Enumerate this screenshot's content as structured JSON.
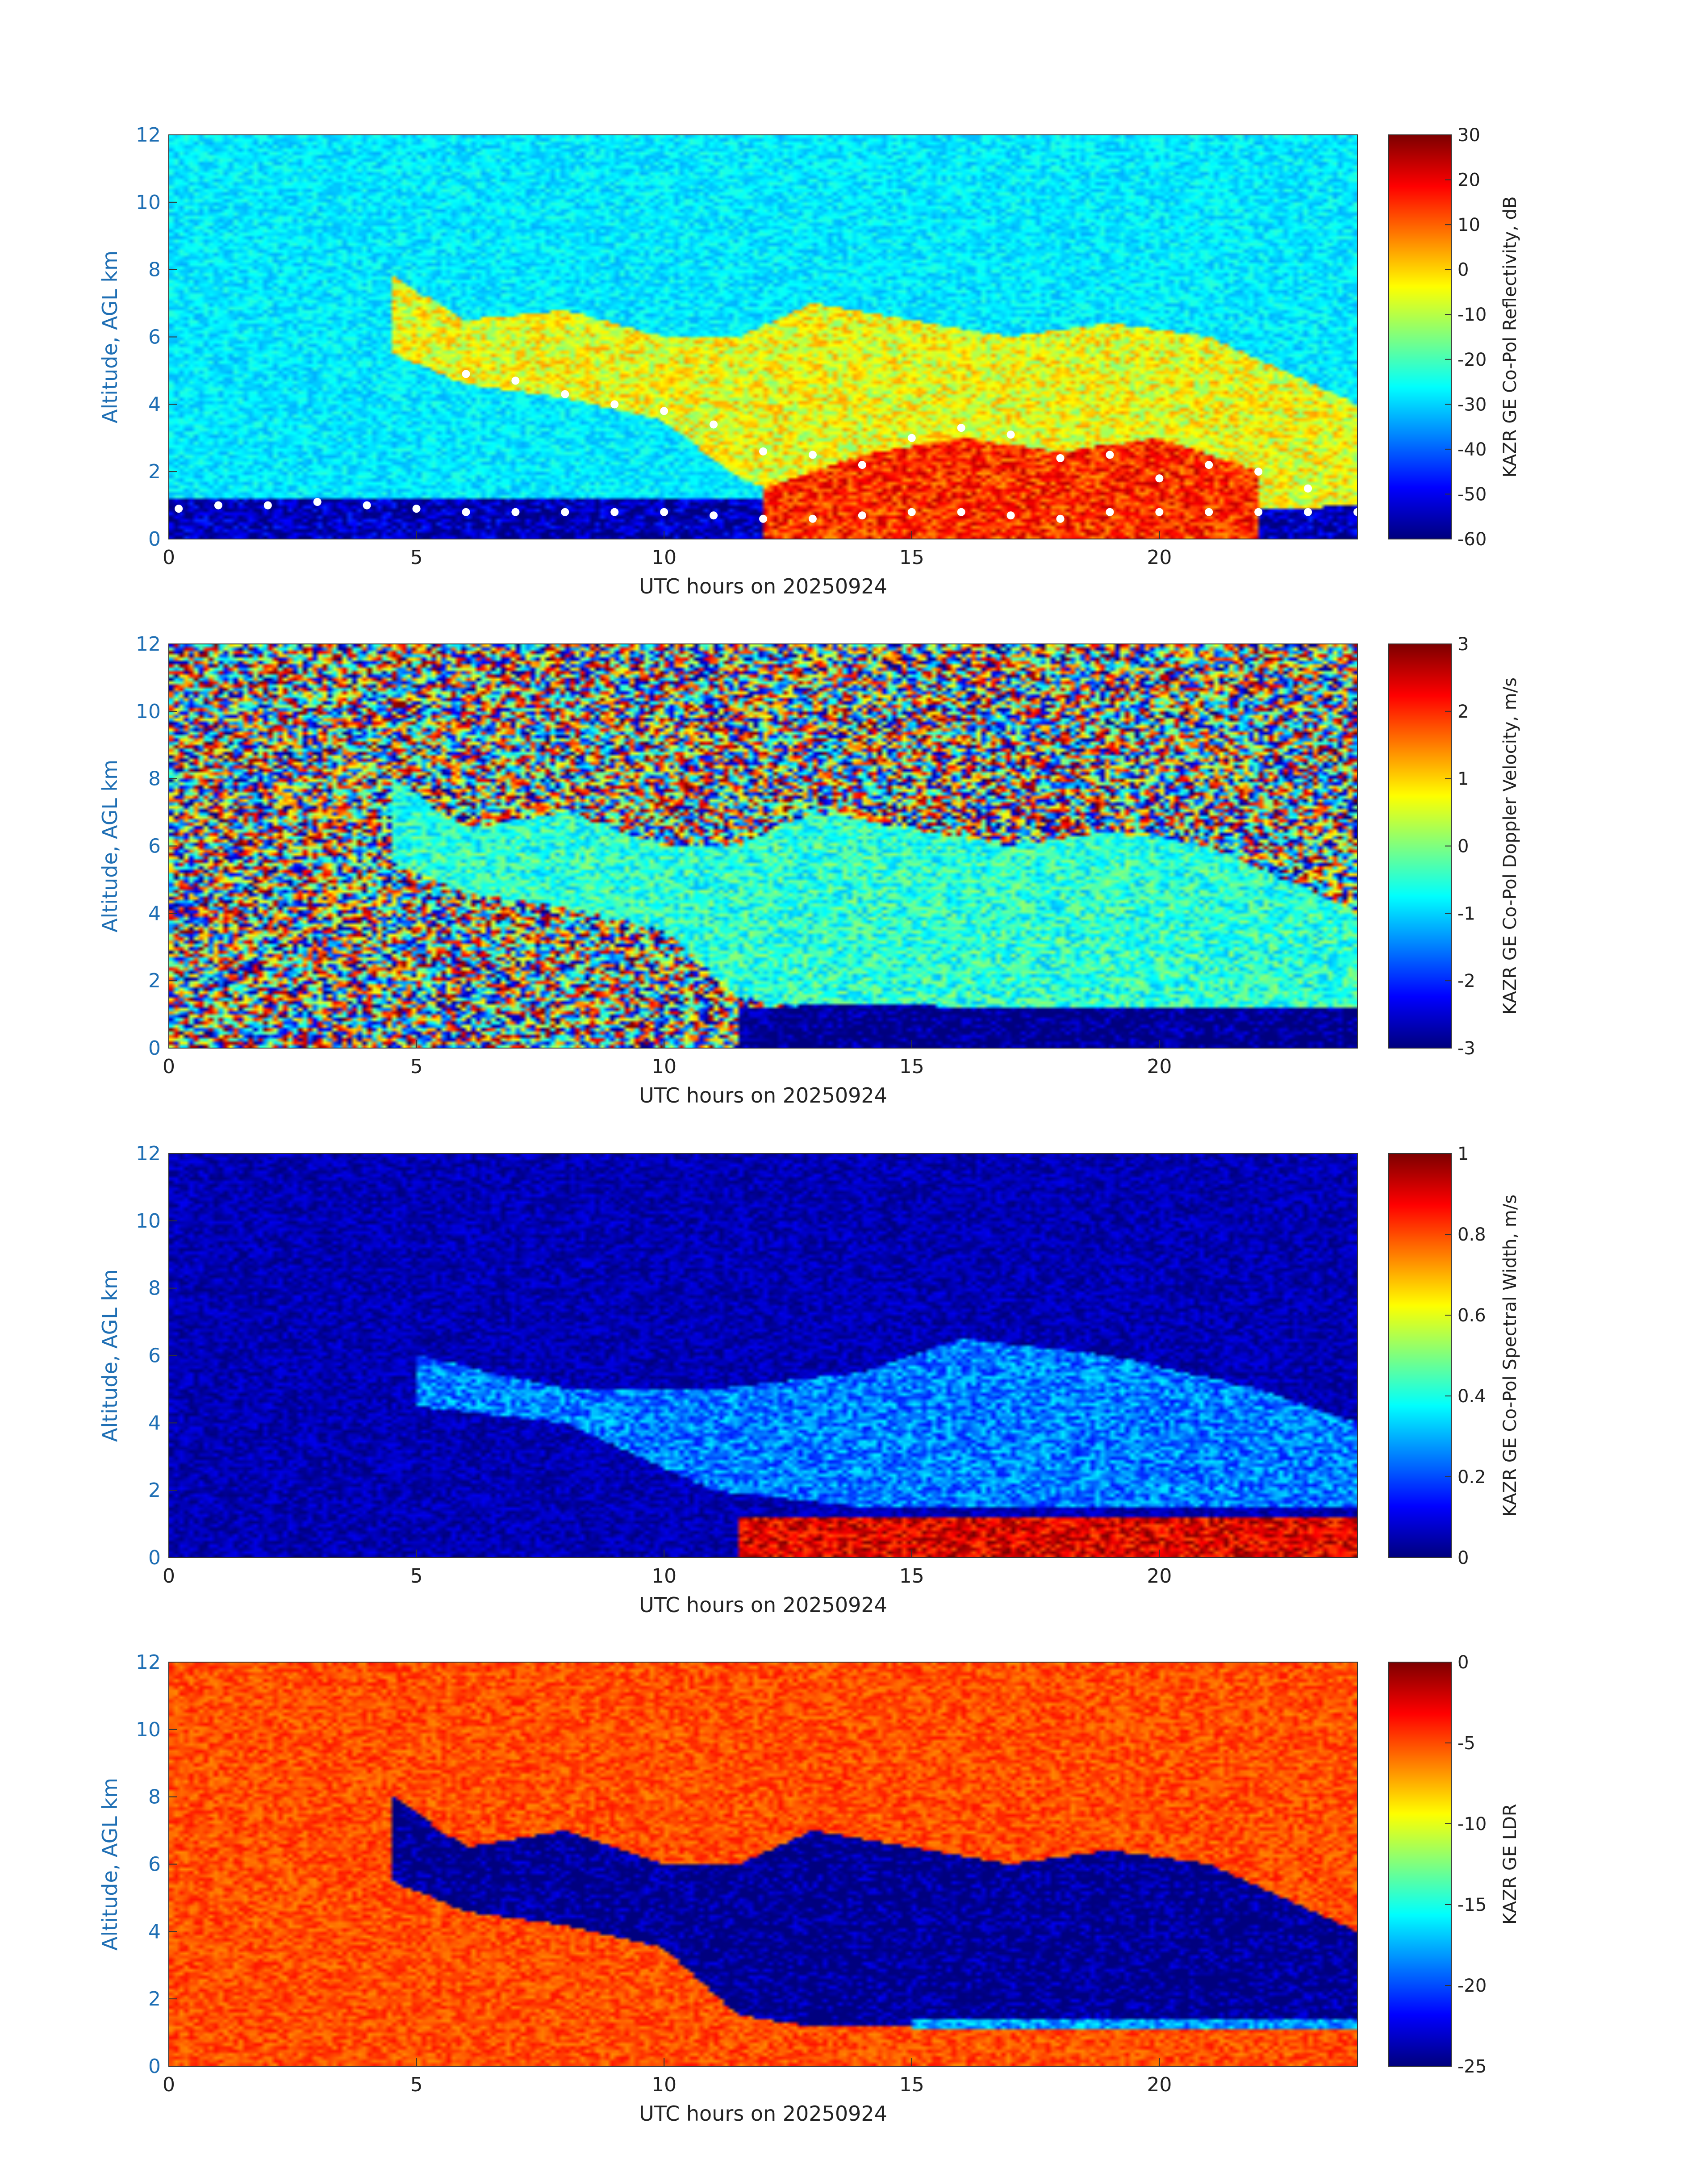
{
  "colors": {
    "ylabel": "#1f6fb4",
    "ytick": "#1f6fb4",
    "xtick": "#222222",
    "jet_ramp": [
      "#00007f",
      "#0000ff",
      "#007fff",
      "#00ffff",
      "#7fff7f",
      "#ffff00",
      "#ff7f00",
      "#ff0000",
      "#7f0000"
    ]
  },
  "chart_data": [
    {
      "type": "heatmap",
      "title": "",
      "xlabel": "UTC hours on 20250924",
      "ylabel": "Altitude, AGL km",
      "xlim": [
        0,
        24
      ],
      "ylim": [
        0,
        12
      ],
      "xticks": [
        0,
        5,
        10,
        15,
        20
      ],
      "yticks": [
        0,
        2,
        4,
        6,
        8,
        10,
        12
      ],
      "colormap": "jet",
      "background_value": -28,
      "colorbar": {
        "label": "KAZR GE Co-Pol Reflectivity, dB",
        "range": [
          -60,
          30
        ],
        "ticks": [
          30,
          20,
          10,
          0,
          -10,
          -20,
          -30,
          -40,
          -50,
          -60
        ]
      },
      "features": [
        {
          "region": "near-surface noise",
          "x": [
            0,
            24
          ],
          "y_bottom": [
            0,
            0
          ],
          "y_top": [
            1.2,
            1.2
          ],
          "value": -55
        },
        {
          "region": "cloud layer",
          "x": [
            4.5,
            6,
            8,
            10,
            11.5,
            13,
            15,
            17,
            19,
            21,
            24
          ],
          "y_bottom": [
            5.5,
            4.6,
            4.2,
            3.5,
            1.8,
            1.0,
            0.8,
            0.8,
            0.8,
            0.8,
            1.0
          ],
          "y_top": [
            7.8,
            6.5,
            6.8,
            6.0,
            6.0,
            7.0,
            6.5,
            6.0,
            6.4,
            6.0,
            4.0
          ],
          "value": -5
        },
        {
          "region": "precipitation",
          "x": [
            12,
            14,
            16,
            18,
            20,
            22
          ],
          "y_bottom": [
            0,
            0,
            0,
            0,
            0,
            0
          ],
          "y_top": [
            1.5,
            2.5,
            3.0,
            2.6,
            3.0,
            2.0
          ],
          "value": 15
        }
      ],
      "overlay_points": {
        "color": "white",
        "x": [
          0.2,
          1.0,
          2.0,
          3.0,
          4.0,
          5.0,
          6.0,
          7.0,
          8.0,
          9.0,
          10.0,
          11.0,
          12.0,
          13.0,
          14.0,
          15.0,
          16.0,
          17.0,
          18.0,
          19.0,
          20.0,
          21.0,
          22.0,
          23.0,
          24.0,
          6.0,
          7.0,
          8.0,
          9.0,
          10.0,
          11.0,
          12.0,
          13.0,
          14.0,
          15.0,
          16.0,
          17.0,
          18.0,
          19.0,
          20.0,
          21.0,
          22.0,
          23.0
        ],
        "y": [
          0.9,
          1.0,
          1.0,
          1.1,
          1.0,
          0.9,
          0.8,
          0.8,
          0.8,
          0.8,
          0.8,
          0.7,
          0.6,
          0.6,
          0.7,
          0.8,
          0.8,
          0.7,
          0.6,
          0.8,
          0.8,
          0.8,
          0.8,
          0.8,
          0.8,
          4.9,
          4.7,
          4.3,
          4.0,
          3.8,
          3.4,
          2.6,
          2.5,
          2.2,
          3.0,
          3.3,
          3.1,
          2.4,
          2.5,
          1.8,
          2.2,
          2.0,
          1.5
        ]
      }
    },
    {
      "type": "heatmap",
      "title": "",
      "xlabel": "UTC hours on 20250924",
      "ylabel": "Altitude, AGL km",
      "xlim": [
        0,
        24
      ],
      "ylim": [
        0,
        12
      ],
      "xticks": [
        0,
        5,
        10,
        15,
        20
      ],
      "yticks": [
        0,
        2,
        4,
        6,
        8,
        10,
        12
      ],
      "colormap": "jet",
      "background_value": "noise",
      "colorbar": {
        "label": "KAZR GE Co-Pol Doppler Velocity, m/s",
        "range": [
          -3,
          3
        ],
        "ticks": [
          3,
          2,
          1,
          0,
          -1,
          -2,
          -3
        ]
      },
      "features": [
        {
          "region": "cloud layer",
          "x": [
            4.5,
            6,
            8,
            10,
            11.5,
            13,
            15,
            17,
            19,
            21,
            24
          ],
          "y_bottom": [
            5.5,
            4.6,
            4.2,
            3.5,
            1.5,
            1.2,
            1.2,
            1.2,
            1.2,
            1.2,
            1.2
          ],
          "y_top": [
            8.0,
            6.5,
            7.0,
            6.0,
            6.0,
            7.0,
            6.5,
            6.0,
            6.4,
            6.0,
            4.0
          ],
          "value": -0.5
        },
        {
          "region": "precipitation",
          "x": [
            11.5,
            14,
            17,
            20,
            24
          ],
          "y_bottom": [
            0,
            0,
            0,
            0,
            0
          ],
          "y_top": [
            1.2,
            1.3,
            1.2,
            1.2,
            1.2
          ],
          "value": -3
        }
      ]
    },
    {
      "type": "heatmap",
      "title": "",
      "xlabel": "UTC hours on 20250924",
      "ylabel": "Altitude, AGL km",
      "xlim": [
        0,
        24
      ],
      "ylim": [
        0,
        12
      ],
      "xticks": [
        0,
        5,
        10,
        15,
        20
      ],
      "yticks": [
        0,
        2,
        4,
        6,
        8,
        10,
        12
      ],
      "colormap": "jet",
      "background_value": 0.05,
      "colorbar": {
        "label": "KAZR GE Co-Pol Spectral Width, m/s",
        "range": [
          0,
          1
        ],
        "ticks": [
          1,
          0.8,
          0.6,
          0.4,
          0.2,
          0
        ]
      },
      "features": [
        {
          "region": "cloud layer",
          "x": [
            5,
            8,
            11,
            14,
            16,
            19,
            22,
            24
          ],
          "y_bottom": [
            4.5,
            4.0,
            2.0,
            1.5,
            1.5,
            1.5,
            1.5,
            1.5
          ],
          "y_top": [
            6.0,
            5.0,
            5.0,
            5.5,
            6.5,
            6.0,
            5.0,
            4.0
          ],
          "value": 0.25
        },
        {
          "region": "precipitation",
          "x": [
            11.5,
            14,
            17,
            20,
            24
          ],
          "y_bottom": [
            0,
            0,
            0,
            0,
            0
          ],
          "y_top": [
            1.2,
            1.2,
            1.2,
            1.2,
            1.2
          ],
          "value": 0.9
        }
      ]
    },
    {
      "type": "heatmap",
      "title": "",
      "xlabel": "UTC hours on 20250924",
      "ylabel": "Altitude, AGL km",
      "xlim": [
        0,
        24
      ],
      "ylim": [
        0,
        12
      ],
      "xticks": [
        0,
        5,
        10,
        15,
        20
      ],
      "yticks": [
        0,
        2,
        4,
        6,
        8,
        10,
        12
      ],
      "colormap": "jet",
      "background_value": -5,
      "colorbar": {
        "label": "KAZR GE LDR",
        "range": [
          -25,
          0
        ],
        "ticks": [
          0,
          -5,
          -10,
          -15,
          -20,
          -25
        ]
      },
      "features": [
        {
          "region": "cloud layer",
          "x": [
            4.5,
            6,
            8,
            10,
            11.5,
            13,
            15,
            17,
            19,
            21,
            24
          ],
          "y_bottom": [
            5.5,
            4.6,
            4.2,
            3.5,
            1.5,
            1.2,
            1.2,
            1.2,
            1.2,
            1.2,
            1.2
          ],
          "y_top": [
            8.0,
            6.5,
            7.0,
            6.0,
            6.0,
            7.0,
            6.5,
            6.0,
            6.4,
            6.0,
            4.0
          ],
          "value": -25
        },
        {
          "region": "melting-layer band",
          "x": [
            15,
            17,
            19,
            21,
            24
          ],
          "y_bottom": [
            1.1,
            1.1,
            1.1,
            1.1,
            1.1
          ],
          "y_top": [
            1.4,
            1.4,
            1.4,
            1.4,
            1.4
          ],
          "value": -18
        }
      ]
    }
  ]
}
